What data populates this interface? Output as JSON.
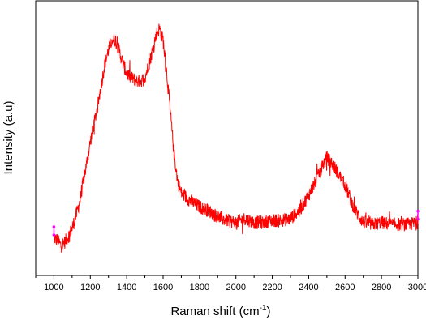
{
  "chart_data": {
    "type": "line",
    "title": "",
    "xlabel": "Raman shift (cm",
    "xlabel_superscript": "-1",
    "xlabel_suffix": ")",
    "ylabel": "Intensity (a.u)",
    "xlim": [
      900,
      3000
    ],
    "ylim": [
      -0.15,
      1.25
    ],
    "x_ticks": [
      1000,
      1200,
      1400,
      1600,
      1800,
      2000,
      2200,
      2400,
      2600,
      2800,
      3000
    ],
    "y_ticks_shown": false,
    "grid": false,
    "legend": "none",
    "line_color": "#ff0000",
    "endpoint_marker_color": "#ff00ff",
    "series": [
      {
        "x": [
          1000,
          1020,
          1040,
          1060,
          1080,
          1100,
          1120,
          1140,
          1160,
          1180,
          1200,
          1220,
          1240,
          1260,
          1280,
          1300,
          1320,
          1340,
          1360,
          1380,
          1400,
          1420,
          1440,
          1460,
          1480,
          1500,
          1520,
          1540,
          1560,
          1580,
          1600,
          1620,
          1640,
          1660,
          1680,
          1700,
          1750,
          1800,
          1850,
          1900,
          1950,
          2000,
          2050,
          2100,
          2150,
          2200,
          2250,
          2300,
          2350,
          2400,
          2450,
          2480,
          2500,
          2520,
          2550,
          2600,
          2650,
          2700,
          2750,
          2800,
          2850,
          2900,
          2950,
          3000
        ],
        "y": [
          0.04,
          0.03,
          0.0,
          0.02,
          0.05,
          0.09,
          0.15,
          0.22,
          0.32,
          0.42,
          0.53,
          0.62,
          0.71,
          0.82,
          0.93,
          1.0,
          1.05,
          1.05,
          0.99,
          0.93,
          0.88,
          0.86,
          0.85,
          0.84,
          0.84,
          0.86,
          0.92,
          0.99,
          1.07,
          1.11,
          1.05,
          0.88,
          0.68,
          0.47,
          0.33,
          0.27,
          0.23,
          0.2,
          0.18,
          0.15,
          0.13,
          0.12,
          0.14,
          0.12,
          0.12,
          0.13,
          0.13,
          0.14,
          0.18,
          0.26,
          0.35,
          0.42,
          0.45,
          0.43,
          0.39,
          0.31,
          0.19,
          0.12,
          0.11,
          0.12,
          0.11,
          0.11,
          0.11,
          0.12
        ]
      }
    ]
  }
}
